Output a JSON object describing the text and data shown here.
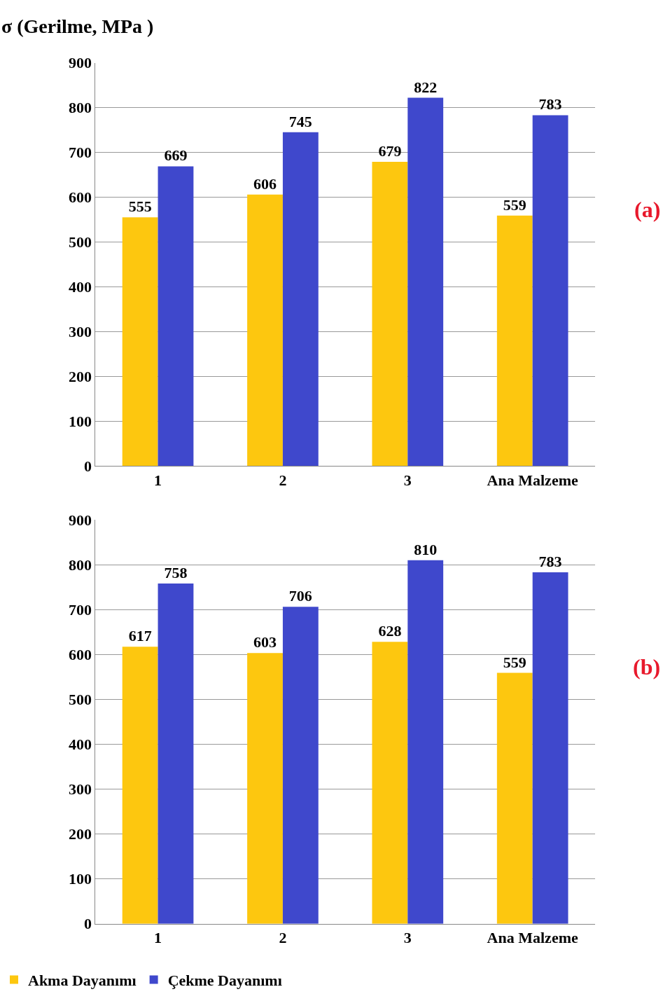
{
  "chart_data": [
    {
      "type": "bar",
      "ylabel": "σ (Gerilme, MPa )",
      "categories": [
        "1",
        "2",
        "3",
        "Ana Malzeme"
      ],
      "series": [
        {
          "color": "#fdc70f",
          "values": [
            555,
            606,
            679,
            559
          ]
        },
        {
          "color": "#3f48cc",
          "values": [
            669,
            745,
            822,
            783
          ]
        }
      ],
      "ylim": [
        0,
        900
      ],
      "yticks": [
        0,
        100,
        200,
        300,
        400,
        500,
        600,
        700,
        800,
        900
      ],
      "grid": "y",
      "data_labels": true,
      "annotations": [
        "(a)"
      ]
    },
    {
      "type": "bar",
      "categories": [
        "1",
        "2",
        "3",
        "Ana Malzeme"
      ],
      "series": [
        {
          "name": "Akma Dayanımı",
          "color": "#fdc70f",
          "values": [
            617,
            603,
            628,
            559
          ]
        },
        {
          "name": "Çekme Dayanımı",
          "color": "#3f48cc",
          "values": [
            758,
            706,
            810,
            783
          ]
        }
      ],
      "ylim": [
        0,
        900
      ],
      "yticks": [
        0,
        100,
        200,
        300,
        400,
        500,
        600,
        700,
        800,
        900
      ],
      "grid": "y",
      "data_labels": true,
      "legend": "bottom left",
      "annotations": [
        "(b)"
      ]
    }
  ]
}
